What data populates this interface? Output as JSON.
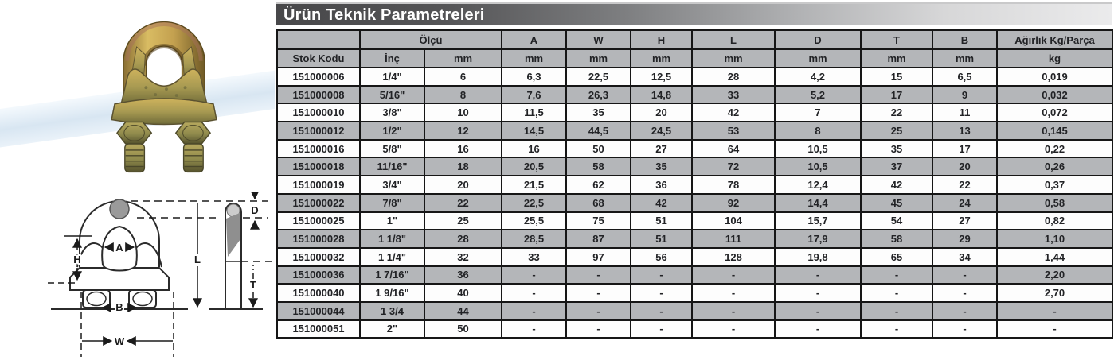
{
  "title": "Ürün Teknik Parametreleri",
  "drawing": {
    "labels": {
      "d": "D",
      "a": "A",
      "h": "H",
      "l": "L",
      "t": "T",
      "b": "B",
      "w": "W"
    }
  },
  "table": {
    "header_row1": {
      "olcu": "Ölçü",
      "dims": [
        "A",
        "W",
        "H",
        "L",
        "D",
        "T",
        "B"
      ],
      "agirlik": "Ağırlık Kg/Parça"
    },
    "header_row2": {
      "stok_kodu": "Stok Kodu",
      "inc": "İnç",
      "mm": "mm",
      "kg": "kg"
    },
    "rows": [
      [
        "151000006",
        "1/4\"",
        "6",
        "6,3",
        "22,5",
        "12,5",
        "28",
        "4,2",
        "15",
        "6,5",
        "0,019"
      ],
      [
        "151000008",
        "5/16\"",
        "8",
        "7,6",
        "26,3",
        "14,8",
        "33",
        "5,2",
        "17",
        "9",
        "0,032"
      ],
      [
        "151000010",
        "3/8\"",
        "10",
        "11,5",
        "35",
        "20",
        "42",
        "7",
        "22",
        "11",
        "0,072"
      ],
      [
        "151000012",
        "1/2\"",
        "12",
        "14,5",
        "44,5",
        "24,5",
        "53",
        "8",
        "25",
        "13",
        "0,145"
      ],
      [
        "151000016",
        "5/8\"",
        "16",
        "16",
        "50",
        "27",
        "64",
        "10,5",
        "35",
        "17",
        "0,22"
      ],
      [
        "151000018",
        "11/16\"",
        "18",
        "20,5",
        "58",
        "35",
        "72",
        "10,5",
        "37",
        "20",
        "0,26"
      ],
      [
        "151000019",
        "3/4\"",
        "20",
        "21,5",
        "62",
        "36",
        "78",
        "12,4",
        "42",
        "22",
        "0,37"
      ],
      [
        "151000022",
        "7/8\"",
        "22",
        "22,5",
        "68",
        "42",
        "92",
        "14,4",
        "45",
        "24",
        "0,58"
      ],
      [
        "151000025",
        "1\"",
        "25",
        "25,5",
        "75",
        "51",
        "104",
        "15,7",
        "54",
        "27",
        "0,82"
      ],
      [
        "151000028",
        "1 1/8\"",
        "28",
        "28,5",
        "87",
        "51",
        "111",
        "17,9",
        "58",
        "29",
        "1,10"
      ],
      [
        "151000032",
        "1 1/4\"",
        "32",
        "33",
        "97",
        "56",
        "128",
        "19,8",
        "65",
        "34",
        "1,44"
      ],
      [
        "151000036",
        "1 7/16\"",
        "36",
        "-",
        "-",
        "-",
        "-",
        "-",
        "-",
        "-",
        "2,20"
      ],
      [
        "151000040",
        "1 9/16\"",
        "40",
        "-",
        "-",
        "-",
        "-",
        "-",
        "-",
        "-",
        "2,70"
      ],
      [
        "151000044",
        "1 3/4",
        "44",
        "-",
        "-",
        "-",
        "-",
        "-",
        "-",
        "-",
        "-"
      ],
      [
        "151000051",
        "2\"",
        "50",
        "-",
        "-",
        "-",
        "-",
        "-",
        "-",
        "-",
        "-"
      ]
    ]
  }
}
